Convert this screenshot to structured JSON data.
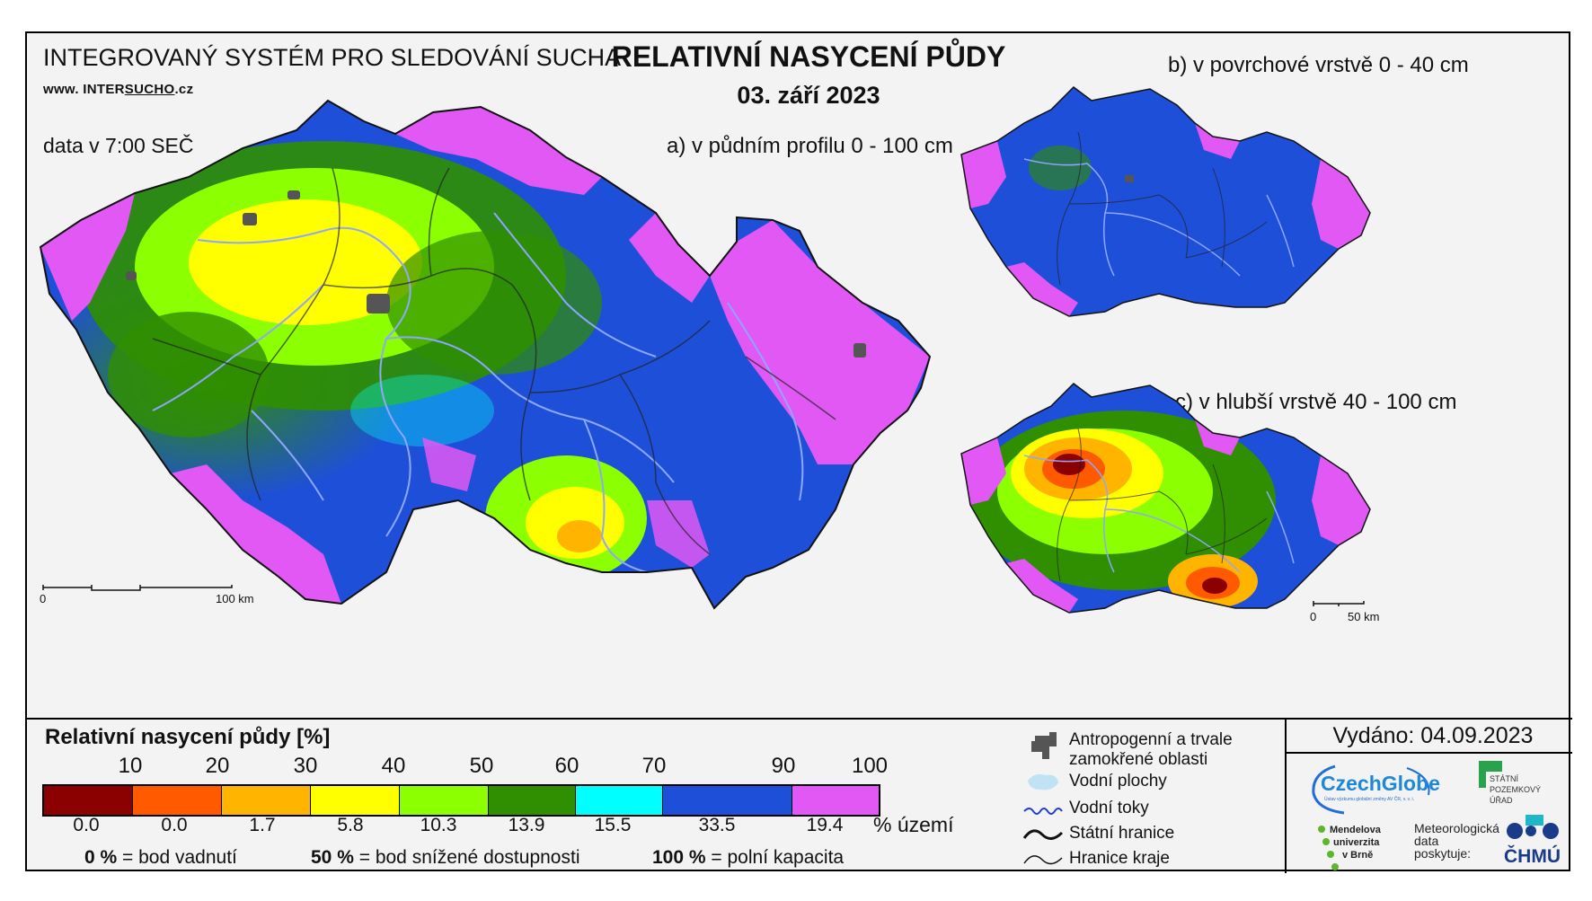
{
  "header": {
    "system": "INTEGROVANÝ SYSTÉM PRO SLEDOVÁNÍ SUCHA",
    "web_prefix": "www. INTER",
    "web_brand": "SUCHO",
    "web_suffix": ".cz",
    "data_time": "data v 7:00 SEČ",
    "title": "RELATIVNÍ NASYCENÍ PŮDY",
    "date": "03. září 2023"
  },
  "panels": {
    "a": "a) v půdním profilu 0 - 100 cm",
    "b": "b) v povrchové vrstvě 0 - 40 cm",
    "c": "c) v hlubší vrstvě 40 - 100 cm"
  },
  "scalebars": {
    "main": {
      "start": "0",
      "end": "100 km"
    },
    "small": {
      "start": "0",
      "end": "50 km"
    }
  },
  "legend": {
    "title": "Relativní nasycení půdy [%]",
    "breaks": [
      "10",
      "20",
      "30",
      "40",
      "50",
      "60",
      "70",
      "90",
      "100"
    ],
    "classes": [
      {
        "color": "#8b0000",
        "share": "0.0"
      },
      {
        "color": "#ff5a00",
        "share": "0.0"
      },
      {
        "color": "#ffb400",
        "share": "1.7"
      },
      {
        "color": "#ffff00",
        "share": "5.8"
      },
      {
        "color": "#8cff00",
        "share": "10.3"
      },
      {
        "color": "#2f8f00",
        "share": "13.9"
      },
      {
        "color": "#00ffff",
        "share": "15.5"
      },
      {
        "color": "#1e4fd8",
        "share": "33.5"
      },
      {
        "color": "#e258f5",
        "share": "19.4"
      }
    ],
    "unit_share": "% území",
    "note_0_value": "0 %",
    "note_0_text": "= bod vadnutí",
    "note_50_value": "50 %",
    "note_50_text": "= bod snížené dostupnosti",
    "note_100_value": "100 %",
    "note_100_text": "= polní kapacita"
  },
  "map_legend": {
    "anthropogenic": "Antropogenní a trvale zamokřené oblasti",
    "water_areas": "Vodní plochy",
    "rivers": "Vodní toky",
    "state_border": "Státní hranice",
    "region_border": "Hranice kraje"
  },
  "issued": "Vydáno: 04.09.2023",
  "logos": {
    "czechglobe": "CzechGlobe",
    "czechglobe_sub": "Ústav výzkumu globální změny AV ČR, v. v. i.",
    "spu_line1": "STÁTNÍ",
    "spu_line2": "POZEMKOVÝ",
    "spu_line3": "ÚŘAD",
    "mendel_line1": "Mendelova",
    "mendel_line2": "univerzita",
    "mendel_line3": "v Brně",
    "meteo_line1": "Meteorologická",
    "meteo_line2": "data",
    "meteo_line3": "poskytuje:",
    "chmu": "ČHMÚ"
  }
}
